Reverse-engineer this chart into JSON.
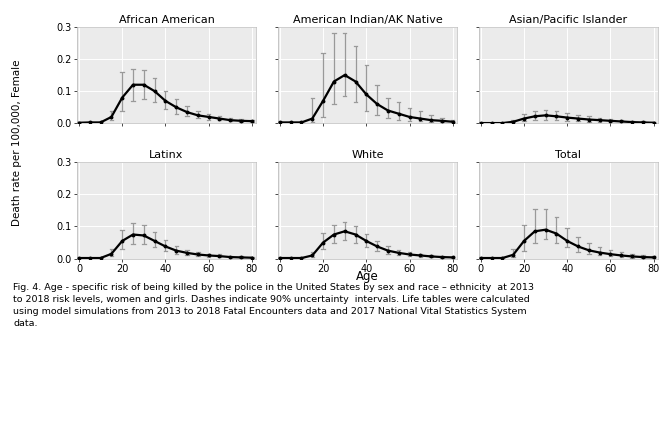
{
  "panels": [
    {
      "title": "African American",
      "ages": [
        0,
        5,
        10,
        15,
        20,
        25,
        30,
        35,
        40,
        45,
        50,
        55,
        60,
        65,
        70,
        75,
        80
      ],
      "mean": [
        0.002,
        0.003,
        0.003,
        0.02,
        0.08,
        0.12,
        0.12,
        0.1,
        0.07,
        0.05,
        0.035,
        0.025,
        0.02,
        0.015,
        0.01,
        0.008,
        0.007
      ],
      "lower": [
        0.002,
        0.003,
        0.003,
        0.01,
        0.04,
        0.07,
        0.075,
        0.065,
        0.045,
        0.03,
        0.022,
        0.016,
        0.012,
        0.009,
        0.006,
        0.004,
        0.003
      ],
      "upper": [
        0.002,
        0.003,
        0.003,
        0.04,
        0.16,
        0.17,
        0.165,
        0.14,
        0.1,
        0.075,
        0.055,
        0.038,
        0.03,
        0.023,
        0.016,
        0.013,
        0.011
      ]
    },
    {
      "title": "American Indian/AK Native",
      "ages": [
        0,
        5,
        10,
        15,
        20,
        25,
        30,
        35,
        40,
        45,
        50,
        55,
        60,
        65,
        70,
        75,
        80
      ],
      "mean": [
        0.003,
        0.003,
        0.003,
        0.015,
        0.07,
        0.13,
        0.15,
        0.13,
        0.09,
        0.06,
        0.04,
        0.03,
        0.02,
        0.015,
        0.01,
        0.008,
        0.005
      ],
      "lower": [
        0.003,
        0.003,
        0.003,
        0.005,
        0.02,
        0.06,
        0.085,
        0.065,
        0.04,
        0.025,
        0.016,
        0.012,
        0.007,
        0.006,
        0.004,
        0.003,
        0.002
      ],
      "upper": [
        0.003,
        0.003,
        0.003,
        0.08,
        0.22,
        0.28,
        0.28,
        0.24,
        0.18,
        0.12,
        0.08,
        0.065,
        0.048,
        0.038,
        0.025,
        0.018,
        0.012
      ]
    },
    {
      "title": "Asian/Pacific Islander",
      "ages": [
        0,
        5,
        10,
        15,
        20,
        25,
        30,
        35,
        40,
        45,
        50,
        55,
        60,
        65,
        70,
        75,
        80
      ],
      "mean": [
        0.001,
        0.001,
        0.001,
        0.005,
        0.015,
        0.022,
        0.025,
        0.022,
        0.018,
        0.015,
        0.012,
        0.01,
        0.008,
        0.006,
        0.004,
        0.003,
        0.002
      ],
      "lower": [
        0.001,
        0.001,
        0.001,
        0.002,
        0.006,
        0.01,
        0.012,
        0.01,
        0.008,
        0.006,
        0.005,
        0.004,
        0.003,
        0.002,
        0.002,
        0.001,
        0.001
      ],
      "upper": [
        0.001,
        0.001,
        0.001,
        0.012,
        0.03,
        0.04,
        0.042,
        0.038,
        0.032,
        0.027,
        0.022,
        0.018,
        0.015,
        0.012,
        0.008,
        0.006,
        0.004
      ]
    },
    {
      "title": "Latinx",
      "ages": [
        0,
        5,
        10,
        15,
        20,
        25,
        30,
        35,
        40,
        45,
        50,
        55,
        60,
        65,
        70,
        75,
        80
      ],
      "mean": [
        0.002,
        0.002,
        0.002,
        0.015,
        0.055,
        0.075,
        0.072,
        0.055,
        0.038,
        0.025,
        0.018,
        0.013,
        0.01,
        0.008,
        0.005,
        0.004,
        0.003
      ],
      "lower": [
        0.002,
        0.002,
        0.002,
        0.007,
        0.03,
        0.045,
        0.045,
        0.035,
        0.024,
        0.015,
        0.01,
        0.007,
        0.005,
        0.004,
        0.003,
        0.002,
        0.001
      ],
      "upper": [
        0.002,
        0.002,
        0.002,
        0.03,
        0.09,
        0.11,
        0.105,
        0.082,
        0.058,
        0.04,
        0.028,
        0.022,
        0.016,
        0.013,
        0.009,
        0.007,
        0.005
      ]
    },
    {
      "title": "White",
      "ages": [
        0,
        5,
        10,
        15,
        20,
        25,
        30,
        35,
        40,
        45,
        50,
        55,
        60,
        65,
        70,
        75,
        80
      ],
      "mean": [
        0.002,
        0.002,
        0.002,
        0.01,
        0.05,
        0.075,
        0.085,
        0.075,
        0.055,
        0.038,
        0.025,
        0.018,
        0.013,
        0.01,
        0.007,
        0.005,
        0.004
      ],
      "lower": [
        0.002,
        0.002,
        0.002,
        0.005,
        0.03,
        0.05,
        0.058,
        0.05,
        0.036,
        0.024,
        0.015,
        0.011,
        0.008,
        0.006,
        0.004,
        0.003,
        0.002
      ],
      "upper": [
        0.002,
        0.002,
        0.002,
        0.02,
        0.08,
        0.105,
        0.115,
        0.103,
        0.078,
        0.056,
        0.038,
        0.027,
        0.02,
        0.015,
        0.011,
        0.008,
        0.006
      ]
    },
    {
      "title": "Total",
      "ages": [
        0,
        5,
        10,
        15,
        20,
        25,
        30,
        35,
        40,
        45,
        50,
        55,
        60,
        65,
        70,
        75,
        80
      ],
      "mean": [
        0.002,
        0.002,
        0.002,
        0.012,
        0.055,
        0.085,
        0.09,
        0.078,
        0.055,
        0.038,
        0.026,
        0.019,
        0.014,
        0.01,
        0.007,
        0.005,
        0.004
      ],
      "lower": [
        0.002,
        0.002,
        0.002,
        0.005,
        0.025,
        0.05,
        0.06,
        0.05,
        0.035,
        0.022,
        0.015,
        0.01,
        0.007,
        0.005,
        0.003,
        0.002,
        0.002
      ],
      "upper": [
        0.002,
        0.002,
        0.002,
        0.03,
        0.105,
        0.155,
        0.155,
        0.128,
        0.095,
        0.068,
        0.048,
        0.036,
        0.028,
        0.02,
        0.014,
        0.01,
        0.008
      ]
    }
  ],
  "ylabel": "Death rate per 100,000, Female",
  "xlabel": "Age",
  "ylim": [
    0,
    0.3
  ],
  "yticks": [
    0.0,
    0.1,
    0.2,
    0.3
  ],
  "xticks": [
    0,
    20,
    40,
    60,
    80
  ],
  "line_color": "black",
  "ci_color": "#999999",
  "grid_color": "white",
  "bg_color": "#ebebeb",
  "fig_bg": "white",
  "title_fontsize": 8.0,
  "tick_fontsize": 7.0,
  "ylabel_fontsize": 7.5,
  "xlabel_fontsize": 8.5,
  "caption_fontsize": 6.8,
  "caption": "Fig. 4. Age - specific risk of being killed by the police in the United States by sex and race – ethnicity  at 2013\nto 2018 risk levels, women and girls. Dashes indicate 90% uncertainty  intervals. Life tables were calculated\nusing model simulations from 2013 to 2018 Fatal Encounters data and 2017 National Vital Statistics System\ndata."
}
